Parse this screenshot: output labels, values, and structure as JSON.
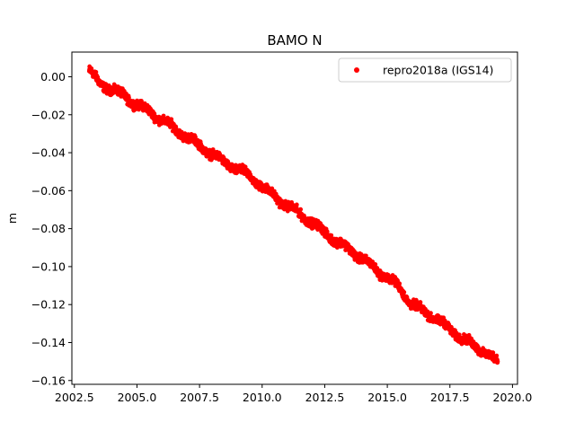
{
  "chart_data": {
    "type": "scatter",
    "title": "BAMO N",
    "xlabel": "",
    "ylabel": "m",
    "xlim": [
      2002.4,
      2020.2
    ],
    "ylim": [
      -0.162,
      0.013
    ],
    "xticks": [
      2002.5,
      2005.0,
      2007.5,
      2010.0,
      2012.5,
      2015.0,
      2017.5,
      2020.0
    ],
    "xtick_labels": [
      "2002.5",
      "2005.0",
      "2007.5",
      "2010.0",
      "2012.5",
      "2015.0",
      "2017.5",
      "2020.0"
    ],
    "yticks": [
      0.0,
      -0.02,
      -0.04,
      -0.06,
      -0.08,
      -0.1,
      -0.12,
      -0.14,
      -0.16
    ],
    "ytick_labels": [
      "0.00",
      "−0.02",
      "−0.04",
      "−0.06",
      "−0.08",
      "−0.10",
      "−0.12",
      "−0.14",
      "−0.16"
    ],
    "grid": false,
    "legend_position": "top-right",
    "series": [
      {
        "name": "repro2018a (IGS14)",
        "color": "#ff0000",
        "marker": "circle",
        "x": [
          2003.1,
          2003.5,
          2004.0,
          2004.5,
          2005.0,
          2005.5,
          2006.0,
          2006.5,
          2007.0,
          2007.5,
          2008.0,
          2008.5,
          2009.0,
          2009.5,
          2010.0,
          2010.5,
          2011.0,
          2011.5,
          2012.0,
          2012.5,
          2013.0,
          2013.5,
          2014.0,
          2014.5,
          2015.0,
          2015.5,
          2015.9,
          2016.5,
          2017.0,
          2017.5,
          2018.0,
          2018.5,
          2019.0,
          2019.4
        ],
        "y": [
          0.003,
          -0.003,
          -0.007,
          -0.01,
          -0.015,
          -0.018,
          -0.023,
          -0.027,
          -0.032,
          -0.036,
          -0.041,
          -0.045,
          -0.049,
          -0.052,
          -0.058,
          -0.063,
          -0.068,
          -0.072,
          -0.077,
          -0.082,
          -0.087,
          -0.091,
          -0.096,
          -0.101,
          -0.106,
          -0.111,
          -0.119,
          -0.124,
          -0.128,
          -0.133,
          -0.138,
          -0.142,
          -0.146,
          -0.15
        ]
      }
    ]
  }
}
